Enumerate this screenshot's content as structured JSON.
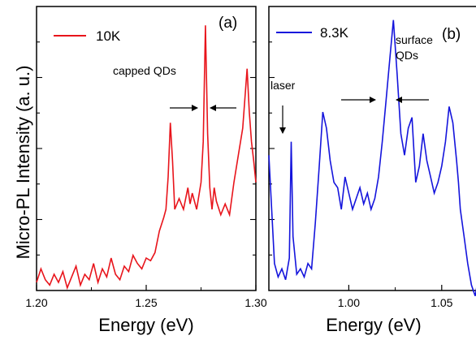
{
  "chart_data": [
    {
      "type": "line",
      "panel_label": "(a)",
      "xlabel": "Energy (eV)",
      "ylabel": "Micro-PL Intensity (a. u.)",
      "xlim": [
        1.2,
        1.3
      ],
      "ylim": [
        0,
        1.05
      ],
      "xticks": [
        "1.20",
        "1.25",
        "1.30"
      ],
      "xtick_values": [
        1.2,
        1.25,
        1.3
      ],
      "legend_position": "top-left",
      "color": "#e8141b",
      "annotation": "capped QDs",
      "series": [
        {
          "name": "10K",
          "x": [
            1.2,
            1.202,
            1.204,
            1.206,
            1.208,
            1.21,
            1.212,
            1.214,
            1.216,
            1.218,
            1.22,
            1.222,
            1.224,
            1.226,
            1.228,
            1.23,
            1.232,
            1.234,
            1.236,
            1.238,
            1.24,
            1.242,
            1.244,
            1.246,
            1.248,
            1.25,
            1.252,
            1.254,
            1.256,
            1.258,
            1.259,
            1.26,
            1.261,
            1.262,
            1.263,
            1.265,
            1.267,
            1.269,
            1.27,
            1.271,
            1.273,
            1.275,
            1.276,
            1.277,
            1.278,
            1.279,
            1.28,
            1.281,
            1.282,
            1.284,
            1.286,
            1.288,
            1.29,
            1.292,
            1.294,
            1.296,
            1.297,
            1.298,
            1.299,
            1.3
          ],
          "y": [
            0.03,
            0.08,
            0.04,
            0.02,
            0.06,
            0.03,
            0.07,
            0.01,
            0.05,
            0.09,
            0.02,
            0.06,
            0.04,
            0.1,
            0.03,
            0.08,
            0.05,
            0.12,
            0.06,
            0.04,
            0.09,
            0.07,
            0.13,
            0.1,
            0.08,
            0.12,
            0.11,
            0.14,
            0.22,
            0.27,
            0.3,
            0.42,
            0.62,
            0.48,
            0.3,
            0.34,
            0.3,
            0.38,
            0.32,
            0.36,
            0.3,
            0.4,
            0.55,
            0.98,
            0.58,
            0.38,
            0.3,
            0.38,
            0.33,
            0.28,
            0.32,
            0.28,
            0.4,
            0.5,
            0.6,
            0.82,
            0.66,
            0.55,
            0.48,
            0.4
          ]
        }
      ]
    },
    {
      "type": "line",
      "panel_label": "(b)",
      "xlabel": "Energy (eV)",
      "xlim": [
        0.957,
        1.075
      ],
      "ylim": [
        0,
        1.05
      ],
      "xticks": [
        "1.00",
        "1.05"
      ],
      "xtick_values": [
        1.0,
        1.05
      ],
      "legend_position": "top-left",
      "color": "#1414dc",
      "annotations": [
        "surface\nQDs",
        "laser"
      ],
      "series": [
        {
          "name": "8.3K",
          "x": [
            0.957,
            0.96,
            0.962,
            0.964,
            0.966,
            0.968,
            0.969,
            0.97,
            0.972,
            0.974,
            0.976,
            0.978,
            0.98,
            0.982,
            0.984,
            0.986,
            0.988,
            0.99,
            0.992,
            0.994,
            0.996,
            0.998,
            1.0,
            1.002,
            1.004,
            1.006,
            1.008,
            1.01,
            1.012,
            1.014,
            1.016,
            1.018,
            1.02,
            1.022,
            1.024,
            1.026,
            1.028,
            1.03,
            1.032,
            1.034,
            1.035,
            1.036,
            1.038,
            1.04,
            1.042,
            1.044,
            1.046,
            1.048,
            1.05,
            1.052,
            1.054,
            1.056,
            1.058,
            1.059,
            1.06,
            1.062,
            1.064,
            1.066,
            1.068,
            1.07,
            1.072,
            1.075
          ],
          "y": [
            0.5,
            0.1,
            0.05,
            0.08,
            0.04,
            0.12,
            0.55,
            0.2,
            0.06,
            0.08,
            0.05,
            0.1,
            0.08,
            0.25,
            0.45,
            0.66,
            0.6,
            0.48,
            0.4,
            0.38,
            0.3,
            0.42,
            0.36,
            0.3,
            0.34,
            0.38,
            0.32,
            0.36,
            0.3,
            0.34,
            0.42,
            0.55,
            0.7,
            0.85,
            1.0,
            0.8,
            0.58,
            0.5,
            0.6,
            0.64,
            0.52,
            0.4,
            0.46,
            0.58,
            0.48,
            0.42,
            0.36,
            0.4,
            0.46,
            0.55,
            0.68,
            0.62,
            0.48,
            0.4,
            0.3,
            0.2,
            0.1,
            0.02,
            -0.02,
            0.06,
            0.12,
            0.08
          ]
        }
      ]
    }
  ]
}
